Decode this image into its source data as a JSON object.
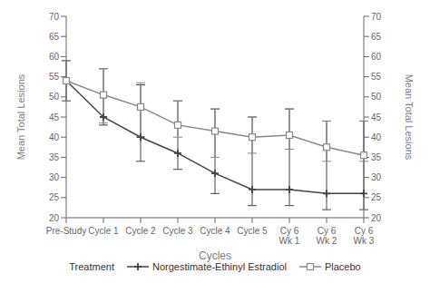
{
  "chart_data": {
    "type": "line",
    "categories": [
      "Pre-Study",
      "Cycle 1",
      "Cycle 2",
      "Cycle 3",
      "Cycle 4",
      "Cycle 5",
      "Cy 6\nWk 1",
      "Cy 6\nWk 2",
      "Cy 6\nWk 3"
    ],
    "series": [
      {
        "name": "Norgestimate-Ethinyl Estradiol",
        "color": "#444444",
        "marker": "plus",
        "values": [
          54,
          45,
          40,
          36,
          31,
          27,
          27,
          26,
          26
        ],
        "upper": [
          59,
          57,
          53,
          49,
          47,
          45,
          47,
          44,
          44
        ],
        "lower": [
          49,
          43,
          34,
          32,
          26,
          23,
          23,
          22,
          22
        ]
      },
      {
        "name": "Placebo",
        "color": "#888888",
        "marker": "square",
        "values": [
          54,
          50.5,
          47.5,
          43,
          41.5,
          40,
          40.5,
          37.5,
          35.5
        ],
        "upper": [
          59,
          57,
          53.5,
          49,
          47,
          45,
          47,
          44,
          44
        ],
        "lower": [
          49,
          43.5,
          40,
          40,
          35,
          36,
          37,
          34,
          34
        ]
      }
    ],
    "ylim": [
      20,
      70
    ],
    "yticks": [
      20,
      25,
      30,
      35,
      40,
      45,
      50,
      55,
      60,
      65,
      70
    ],
    "ylabel": "Mean Total Lesions",
    "y2lim": [
      20,
      70
    ],
    "y2ticks": [
      20,
      25,
      30,
      35,
      40,
      45,
      50,
      55,
      60,
      65,
      70
    ],
    "y2label": "Mean Total Lesions",
    "xlabel": "Cycles",
    "legend_title": "Treatment",
    "legend": "bottom",
    "grid": false
  }
}
